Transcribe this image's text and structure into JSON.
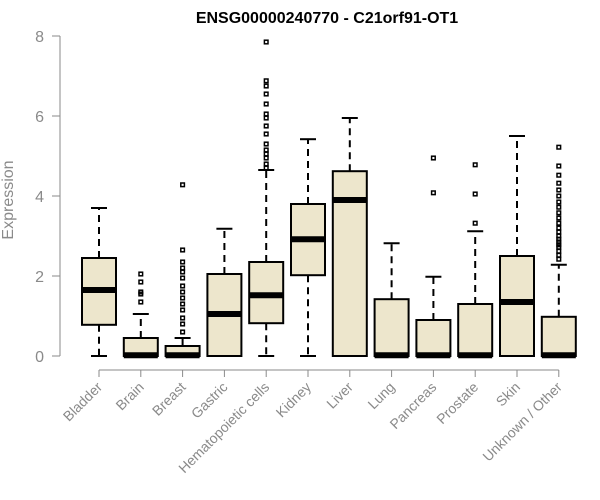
{
  "chart_data": {
    "type": "boxplot",
    "title": "ENSG00000240770 - C21orf91-OT1",
    "xlabel": "",
    "ylabel": "Expression",
    "ylim": [
      0,
      8
    ],
    "yticks": [
      0,
      2,
      4,
      6,
      8
    ],
    "box_color": "#ede6cc",
    "categories": [
      "Bladder",
      "Brain",
      "Breast",
      "Gastric",
      "Hematopoietic cells",
      "Kidney",
      "Liver",
      "Lung",
      "Pancreas",
      "Prostate",
      "Skin",
      "Unknown / Other"
    ],
    "boxes": [
      {
        "name": "Bladder",
        "min": 0.0,
        "q1": 0.78,
        "median": 1.65,
        "q3": 2.45,
        "max": 3.7,
        "outliers": []
      },
      {
        "name": "Brain",
        "min": 0.0,
        "q1": 0.0,
        "median": 0.02,
        "q3": 0.45,
        "max": 1.05,
        "outliers": [
          1.35,
          1.55,
          1.6,
          1.85,
          2.05
        ]
      },
      {
        "name": "Breast",
        "min": 0.0,
        "q1": 0.0,
        "median": 0.02,
        "q3": 0.25,
        "max": 0.45,
        "outliers": [
          0.6,
          0.8,
          0.95,
          1.15,
          1.3,
          1.45,
          1.6,
          1.75,
          1.95,
          2.1,
          2.2,
          2.35,
          2.65,
          4.28
        ]
      },
      {
        "name": "Gastric",
        "min": 0.0,
        "q1": 0.0,
        "median": 1.05,
        "q3": 2.05,
        "max": 3.18,
        "outliers": []
      },
      {
        "name": "Hematopoietic cells",
        "min": 0.0,
        "q1": 0.82,
        "median": 1.52,
        "q3": 2.35,
        "max": 4.65,
        "outliers": [
          4.7,
          4.8,
          4.95,
          5.05,
          5.15,
          5.3,
          5.55,
          5.75,
          5.95,
          6.05,
          6.3,
          6.55,
          6.75,
          6.88,
          7.85
        ]
      },
      {
        "name": "Kidney",
        "min": 0.0,
        "q1": 2.02,
        "median": 2.92,
        "q3": 3.8,
        "max": 5.42,
        "outliers": []
      },
      {
        "name": "Liver",
        "min": 0.0,
        "q1": 0.0,
        "median": 3.9,
        "q3": 4.62,
        "max": 5.95,
        "outliers": []
      },
      {
        "name": "Lung",
        "min": 0.0,
        "q1": 0.0,
        "median": 0.02,
        "q3": 1.42,
        "max": 2.82,
        "outliers": []
      },
      {
        "name": "Pancreas",
        "min": 0.0,
        "q1": 0.0,
        "median": 0.02,
        "q3": 0.9,
        "max": 1.98,
        "outliers": [
          4.08,
          4.95
        ]
      },
      {
        "name": "Prostate",
        "min": 0.0,
        "q1": 0.0,
        "median": 0.02,
        "q3": 1.3,
        "max": 3.12,
        "outliers": [
          3.32,
          4.05,
          4.78
        ]
      },
      {
        "name": "Skin",
        "min": 0.0,
        "q1": 0.0,
        "median": 1.35,
        "q3": 2.5,
        "max": 5.5,
        "outliers": []
      },
      {
        "name": "Unknown / Other",
        "min": 0.0,
        "q1": 0.0,
        "median": 0.02,
        "q3": 0.98,
        "max": 2.28,
        "outliers": [
          2.42,
          2.52,
          2.62,
          2.72,
          2.78,
          2.85,
          2.92,
          3.0,
          3.1,
          3.2,
          3.32,
          3.45,
          3.58,
          3.72,
          3.85,
          4.0,
          4.15,
          4.32,
          4.52,
          4.75,
          5.22
        ]
      }
    ]
  }
}
